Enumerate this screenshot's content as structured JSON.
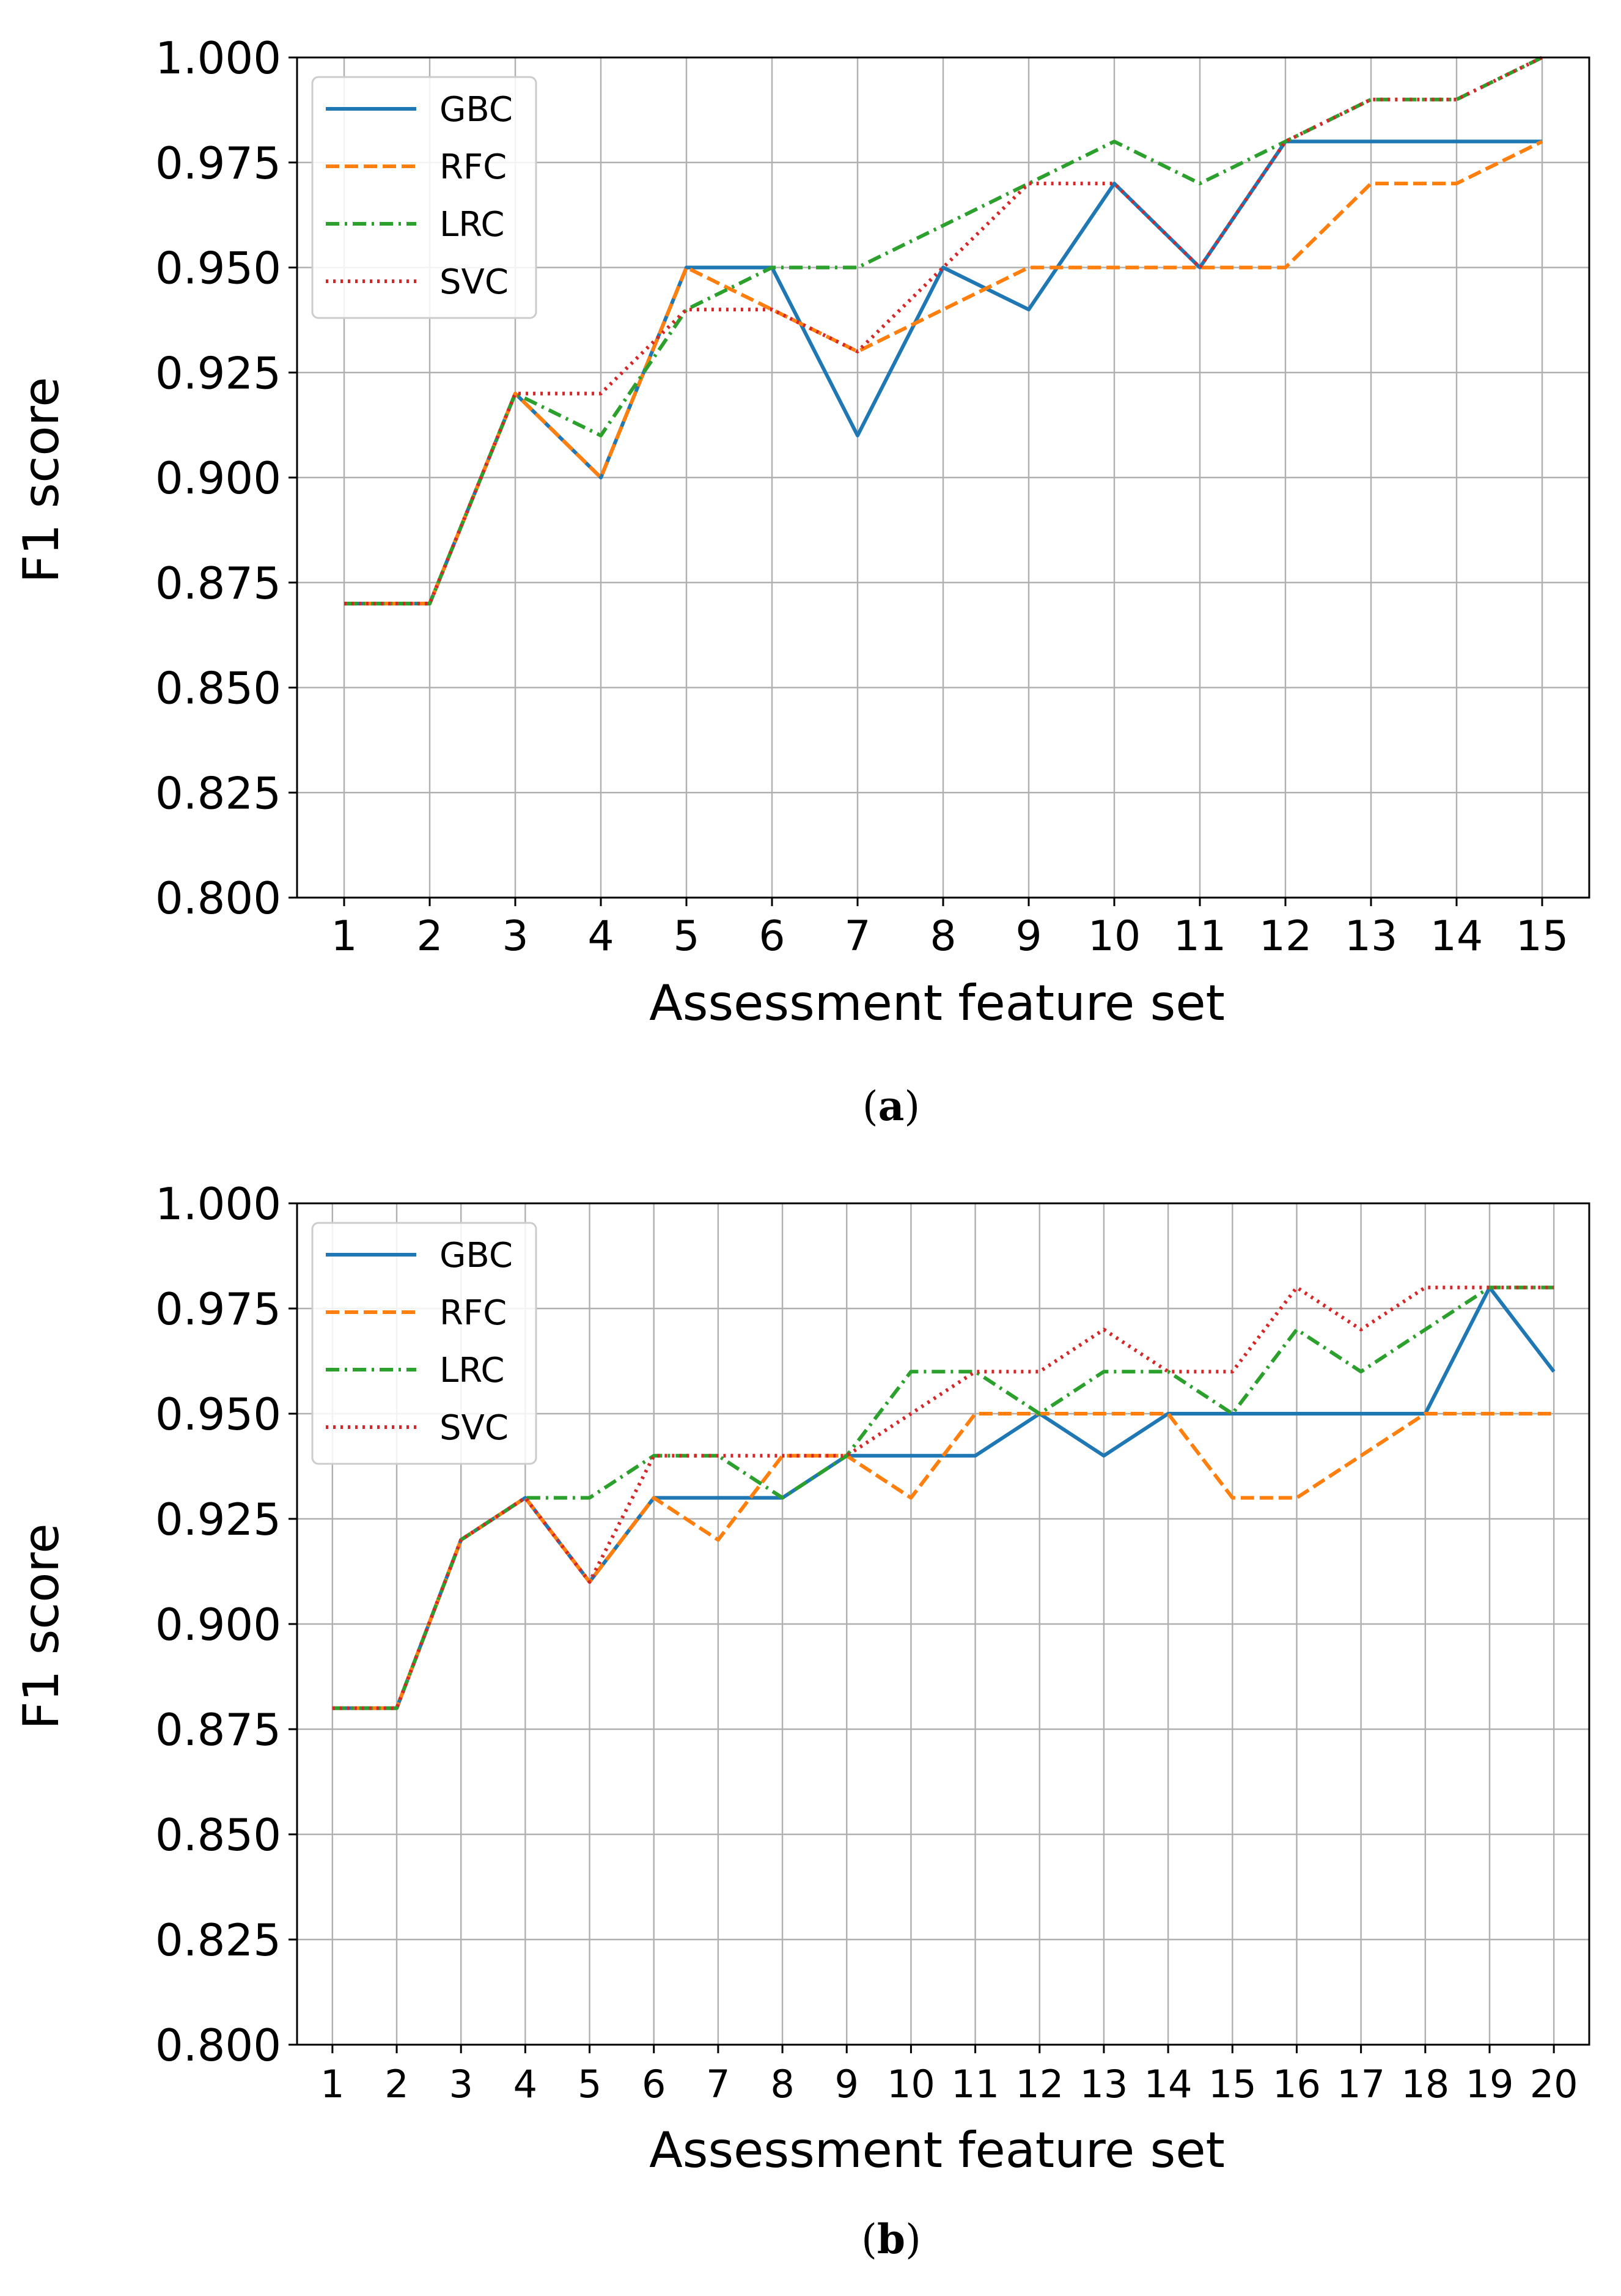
{
  "colors": {
    "GBC": "#1f77b4",
    "RFC": "#ff7f0e",
    "LRC": "#2ca02c",
    "SVC": "#d62728",
    "grid": "#b0b0b0"
  },
  "chart_data": [
    {
      "type": "line",
      "caption": "(a)",
      "caption_letter": "a",
      "xlabel": "Assessment feature set",
      "ylabel": "F1 score",
      "categories": [
        "1",
        "2",
        "3",
        "4",
        "5",
        "6",
        "7",
        "8",
        "9",
        "10",
        "11",
        "12",
        "13",
        "14",
        "15"
      ],
      "ylim": [
        0.8,
        1.0
      ],
      "yticks": [
        "0.800",
        "0.825",
        "0.850",
        "0.875",
        "0.900",
        "0.925",
        "0.950",
        "0.975",
        "1.000"
      ],
      "grid": true,
      "legend_position": "top-left",
      "series": [
        {
          "name": "GBC",
          "style": "solid",
          "values": [
            0.87,
            0.87,
            0.92,
            0.9,
            0.95,
            0.95,
            0.91,
            0.95,
            0.94,
            0.97,
            0.95,
            0.98,
            0.98,
            0.98,
            0.98
          ]
        },
        {
          "name": "RFC",
          "style": "dashed",
          "values": [
            0.87,
            0.87,
            0.92,
            0.9,
            0.95,
            0.94,
            0.93,
            0.94,
            0.95,
            0.95,
            0.95,
            0.95,
            0.97,
            0.97,
            0.98
          ]
        },
        {
          "name": "LRC",
          "style": "dashdot",
          "values": [
            0.87,
            0.87,
            0.92,
            0.91,
            0.94,
            0.95,
            0.95,
            0.96,
            0.97,
            0.98,
            0.97,
            0.98,
            0.99,
            0.99,
            1.0
          ]
        },
        {
          "name": "SVC",
          "style": "dotted",
          "values": [
            0.87,
            0.87,
            0.92,
            0.92,
            0.94,
            0.94,
            0.93,
            0.95,
            0.97,
            0.97,
            0.95,
            0.98,
            0.99,
            0.99,
            1.0
          ]
        }
      ]
    },
    {
      "type": "line",
      "caption": "(b)",
      "caption_letter": "b",
      "xlabel": "Assessment feature set",
      "ylabel": "F1 score",
      "categories": [
        "1",
        "2",
        "3",
        "4",
        "5",
        "6",
        "7",
        "8",
        "9",
        "10",
        "11",
        "12",
        "13",
        "14",
        "15",
        "16",
        "17",
        "18",
        "19",
        "20"
      ],
      "ylim": [
        0.8,
        1.0
      ],
      "yticks": [
        "0.800",
        "0.825",
        "0.850",
        "0.875",
        "0.900",
        "0.925",
        "0.950",
        "0.975",
        "1.000"
      ],
      "grid": true,
      "legend_position": "top-left",
      "series": [
        {
          "name": "GBC",
          "style": "solid",
          "values": [
            0.88,
            0.88,
            0.92,
            0.93,
            0.91,
            0.93,
            0.93,
            0.93,
            0.94,
            0.94,
            0.94,
            0.95,
            0.94,
            0.95,
            0.95,
            0.95,
            0.95,
            0.95,
            0.98,
            0.96
          ]
        },
        {
          "name": "RFC",
          "style": "dashed",
          "values": [
            0.88,
            0.88,
            0.92,
            0.93,
            0.91,
            0.93,
            0.92,
            0.94,
            0.94,
            0.93,
            0.95,
            0.95,
            0.95,
            0.95,
            0.93,
            0.93,
            0.94,
            0.95,
            0.95,
            0.95
          ]
        },
        {
          "name": "LRC",
          "style": "dashdot",
          "values": [
            0.88,
            0.88,
            0.92,
            0.93,
            0.93,
            0.94,
            0.94,
            0.93,
            0.94,
            0.96,
            0.96,
            0.95,
            0.96,
            0.96,
            0.95,
            0.97,
            0.96,
            0.97,
            0.98,
            0.98
          ]
        },
        {
          "name": "SVC",
          "style": "dotted",
          "values": [
            0.88,
            0.88,
            0.92,
            0.93,
            0.91,
            0.94,
            0.94,
            0.94,
            0.94,
            0.95,
            0.96,
            0.96,
            0.97,
            0.96,
            0.96,
            0.98,
            0.97,
            0.98,
            0.98,
            0.98
          ]
        }
      ]
    }
  ]
}
